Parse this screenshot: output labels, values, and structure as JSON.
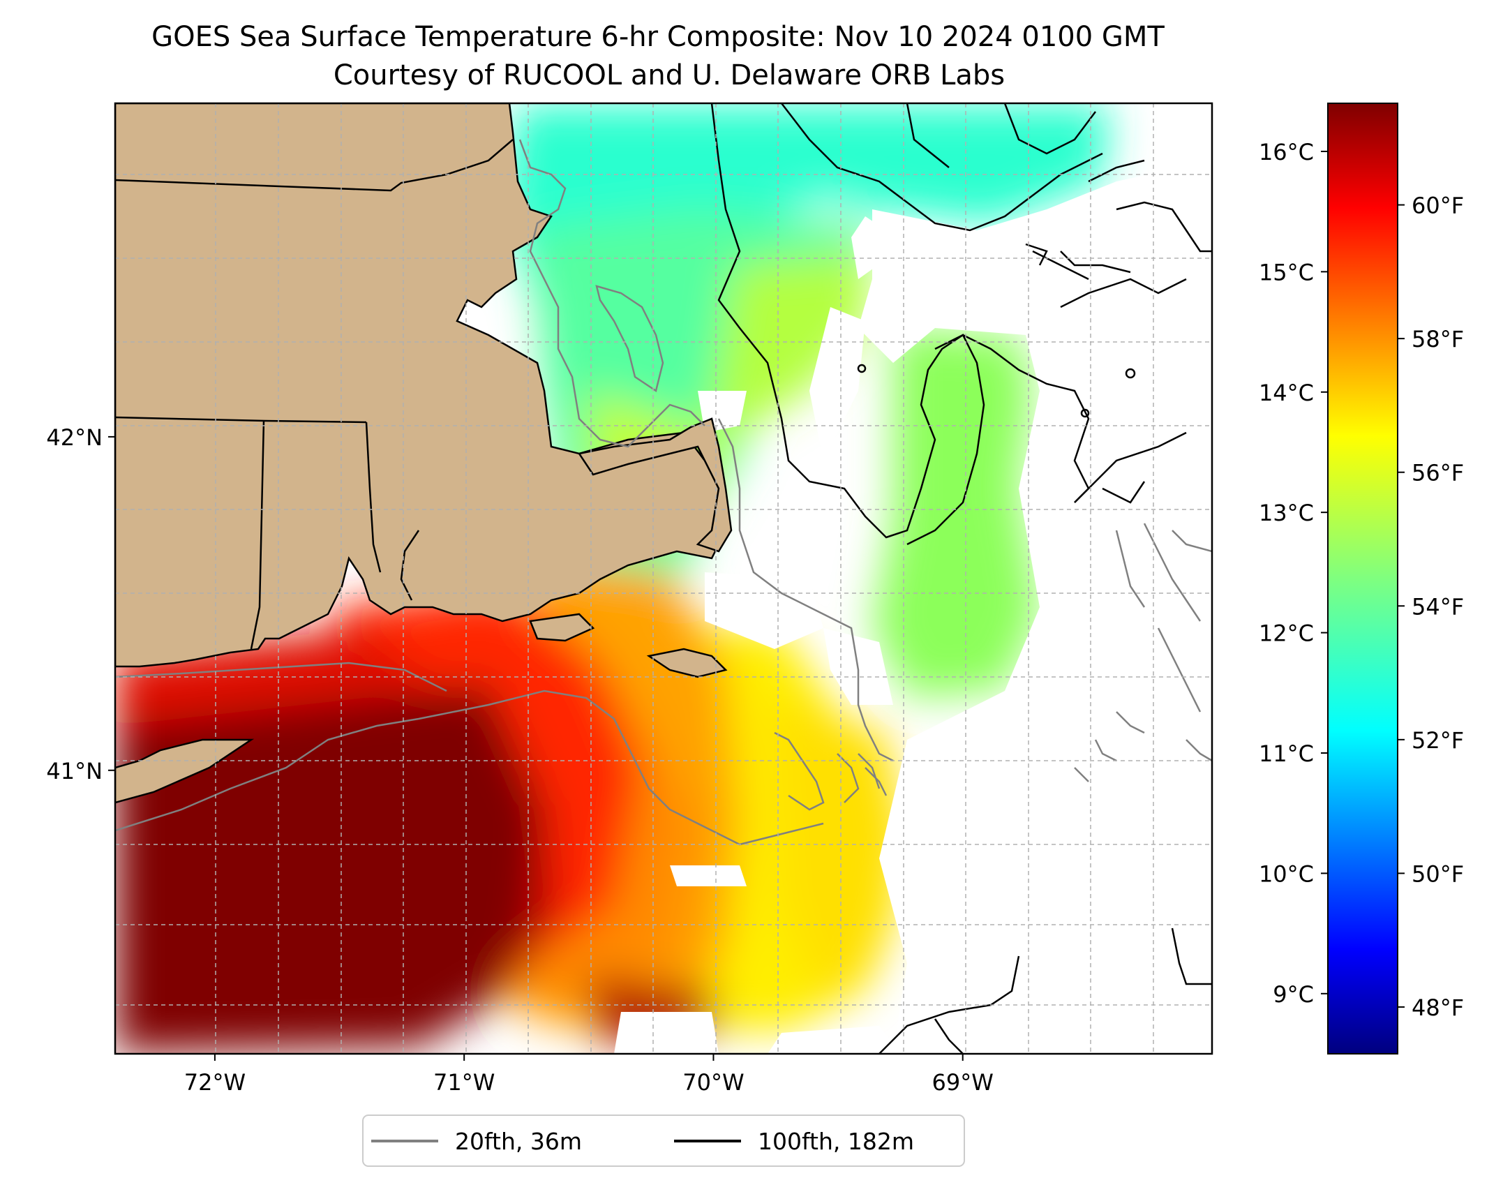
{
  "title": {
    "line1": "GOES Sea Surface Temperature 6-hr Composite: Nov 10 2024 0100 GMT",
    "line2": "Courtesy of RUCOOL and U. Delaware ORB Labs"
  },
  "map": {
    "lon_range": [
      -72.4,
      -68.0
    ],
    "lat_range": [
      40.15,
      43.0
    ],
    "x_ticks": [
      {
        "value": -72,
        "label": "72°W"
      },
      {
        "value": -71,
        "label": "71°W"
      },
      {
        "value": -70,
        "label": "70°W"
      },
      {
        "value": -69,
        "label": "69°W"
      }
    ],
    "y_ticks": [
      {
        "value": 42,
        "label": "42°N"
      },
      {
        "value": 41,
        "label": "41°N"
      }
    ],
    "grid": true,
    "land_color": "#d2b48c",
    "colormap": "jet"
  },
  "colorbar": {
    "celsius_ticks": [
      {
        "value": 9,
        "label": "9°C"
      },
      {
        "value": 10,
        "label": "10°C"
      },
      {
        "value": 11,
        "label": "11°C"
      },
      {
        "value": 12,
        "label": "12°C"
      },
      {
        "value": 13,
        "label": "13°C"
      },
      {
        "value": 14,
        "label": "14°C"
      },
      {
        "value": 15,
        "label": "15°C"
      },
      {
        "value": 16,
        "label": "16°C"
      }
    ],
    "fahrenheit_ticks": [
      {
        "value": 48,
        "label": "48°F"
      },
      {
        "value": 50,
        "label": "50°F"
      },
      {
        "value": 52,
        "label": "52°F"
      },
      {
        "value": 54,
        "label": "54°F"
      },
      {
        "value": 56,
        "label": "56°F"
      },
      {
        "value": 58,
        "label": "58°F"
      },
      {
        "value": 60,
        "label": "60°F"
      }
    ],
    "range_celsius": [
      8.5,
      16.4
    ]
  },
  "legend": {
    "items": [
      {
        "label": "20fth, 36m",
        "color": "#808080"
      },
      {
        "label": "100fth, 182m",
        "color": "#000000"
      }
    ]
  }
}
